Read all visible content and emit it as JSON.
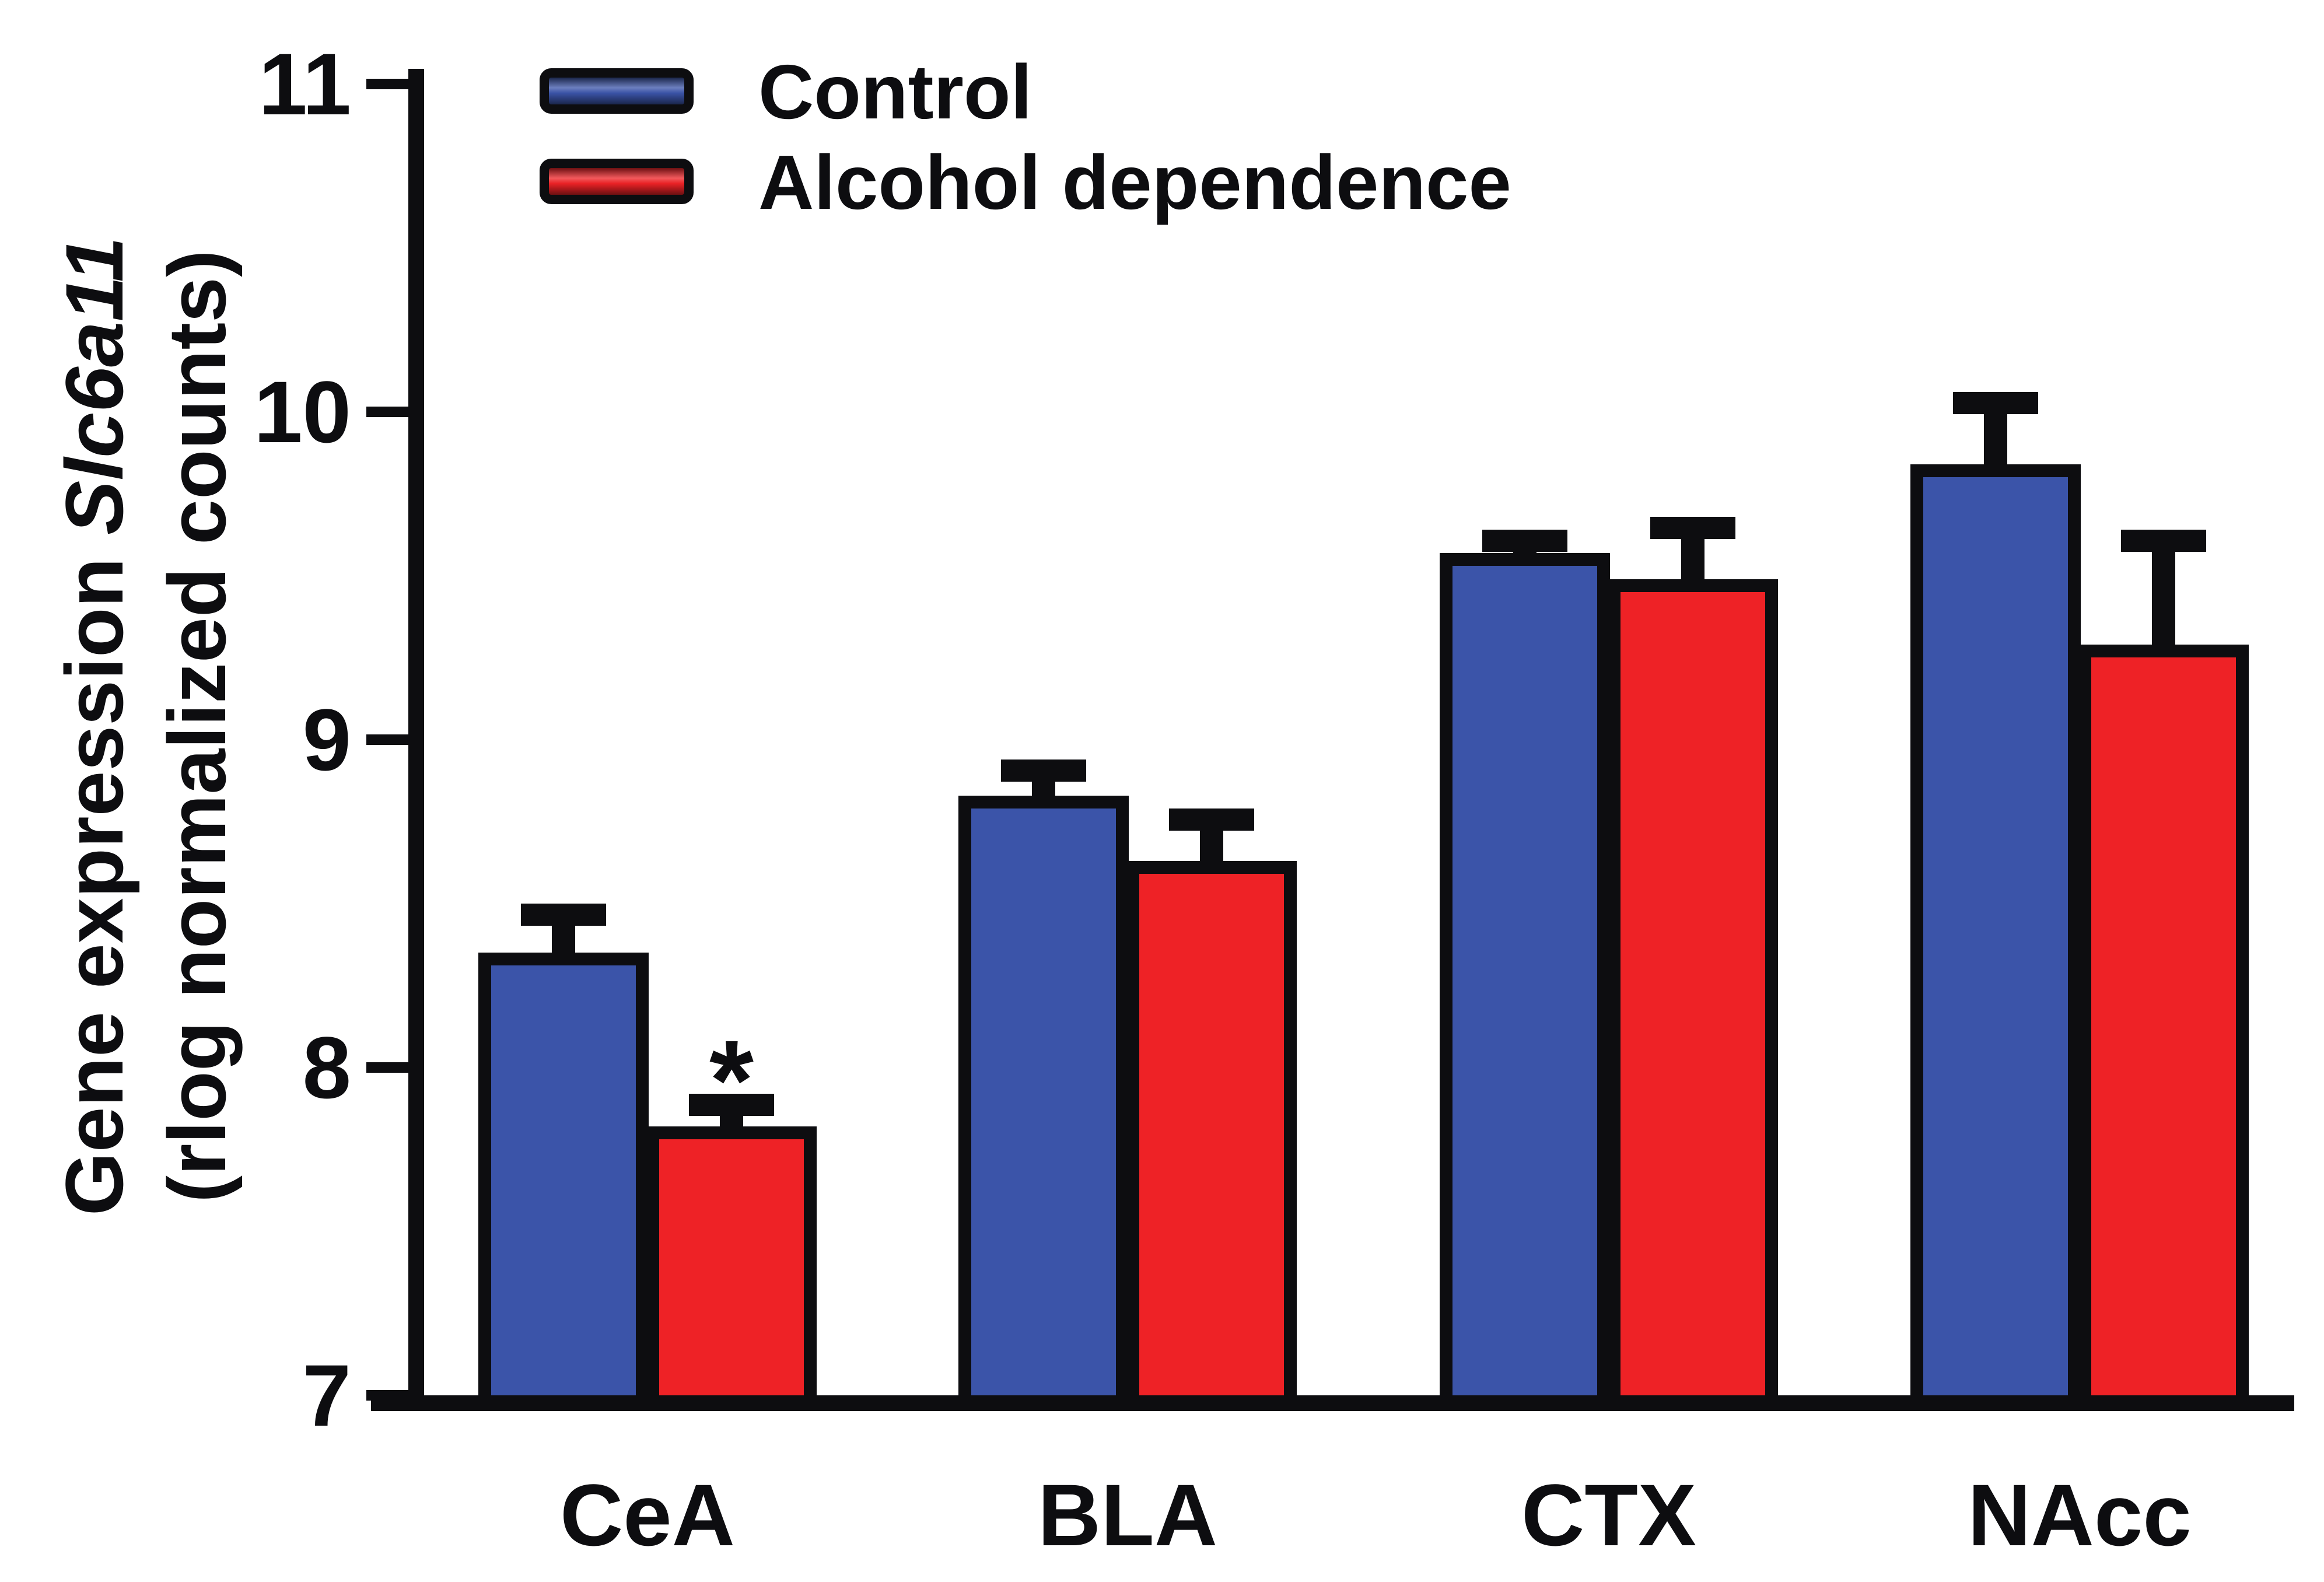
{
  "chart_data": {
    "type": "bar",
    "title": "",
    "y_axis": {
      "title_prefix": "Gene expression ",
      "title_gene": "Slc6a11",
      "title_line2": "(rlog normalized counts)"
    },
    "xlabel": "",
    "categories": [
      "CeA",
      "BLA",
      "CTX",
      "NAcc"
    ],
    "series": [
      {
        "name": "Control",
        "color": "#3b54a9",
        "values": [
          8.35,
          8.83,
          9.57,
          9.84
        ],
        "sem": [
          0.15,
          0.11,
          0.07,
          0.22
        ]
      },
      {
        "name": "Alcohol dependence",
        "color": "#ee2226",
        "values": [
          7.82,
          8.63,
          9.49,
          9.29
        ],
        "sem": [
          0.1,
          0.16,
          0.19,
          0.35
        ]
      }
    ],
    "error_bars": "upper SEM whiskers with caps",
    "significance": [
      {
        "category": "CeA",
        "series": "Alcohol dependence",
        "marker": "*"
      }
    ],
    "ylim": [
      7,
      11
    ],
    "yticks": [
      7,
      8,
      9,
      10,
      11
    ],
    "grid": false,
    "legend_position": "top-left",
    "ink_color": "#0d0d10",
    "background": "#ffffff"
  }
}
